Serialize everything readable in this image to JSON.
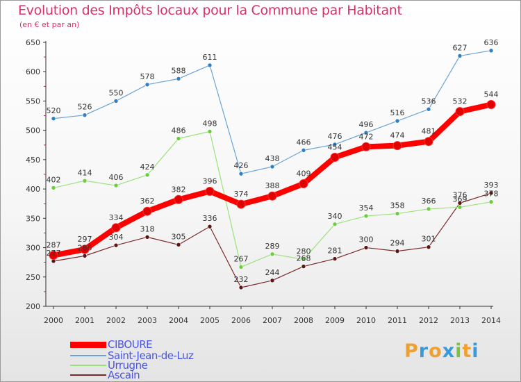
{
  "chart_data": {
    "type": "line",
    "title": "Evolution des Impôts locaux pour la Commune par Habitant",
    "subtitle": "(en € et par an)",
    "xlabel": "",
    "ylabel": "",
    "x": [
      "2000",
      "2001",
      "2002",
      "2003",
      "2004",
      "2005",
      "2006",
      "2007",
      "2008",
      "2009",
      "2010",
      "2011",
      "2012",
      "2013",
      "2014"
    ],
    "ylim": [
      200,
      650
    ],
    "yticks": [
      "200",
      "250",
      "300",
      "350",
      "400",
      "450",
      "500",
      "550",
      "600",
      "650"
    ],
    "grid": false,
    "legend_position": "bottom-left",
    "series": [
      {
        "name": "CIBOURE",
        "color": "#ff0000",
        "point_color": "#e00000",
        "values": [
          287,
          297,
          334,
          362,
          382,
          396,
          374,
          388,
          409,
          454,
          472,
          474,
          481,
          532,
          544
        ],
        "labels": [
          "287",
          "297",
          "334",
          "362",
          "382",
          "396",
          "374",
          "388",
          "409",
          "454",
          "472",
          "474",
          "481",
          "532",
          "544"
        ]
      },
      {
        "name": "Saint-Jean-de-Luz",
        "color": "#6aa3d6",
        "point_color": "#2f7fc1",
        "values": [
          520,
          526,
          550,
          578,
          588,
          611,
          426,
          438,
          466,
          476,
          496,
          516,
          536,
          627,
          636
        ],
        "labels": [
          "520",
          "526",
          "550",
          "578",
          "588",
          "611",
          "426",
          "438",
          "466",
          "476",
          "496",
          "516",
          "536",
          "627",
          "636"
        ]
      },
      {
        "name": "Urrugne",
        "color": "#99e27a",
        "point_color": "#6ccc3e",
        "values": [
          402,
          414,
          406,
          424,
          486,
          498,
          267,
          289,
          280,
          340,
          354,
          358,
          366,
          369,
          378
        ],
        "labels": [
          "402",
          "414",
          "406",
          "424",
          "486",
          "498",
          "267",
          "289",
          "280",
          "340",
          "354",
          "358",
          "366",
          "369",
          "378"
        ]
      },
      {
        "name": "Ascain",
        "color": "#7a2a2a",
        "point_color": "#5a1515",
        "values": [
          277,
          286,
          304,
          318,
          305,
          336,
          232,
          244,
          268,
          281,
          300,
          294,
          301,
          376,
          393
        ],
        "labels": [
          "277",
          "286",
          "304",
          "318",
          "305",
          "336",
          "232",
          "244",
          "268",
          "281",
          "300",
          "294",
          "301",
          "376",
          "393"
        ]
      }
    ]
  },
  "logo": {
    "letters": [
      "P",
      "r",
      "o",
      "x",
      "i",
      "t",
      "i"
    ],
    "colors": [
      "#f0a030",
      "#3a9ad9",
      "#f0a030",
      "#3a9ad9",
      "#7cc242",
      "#f0a030",
      "#3a9ad9"
    ]
  }
}
